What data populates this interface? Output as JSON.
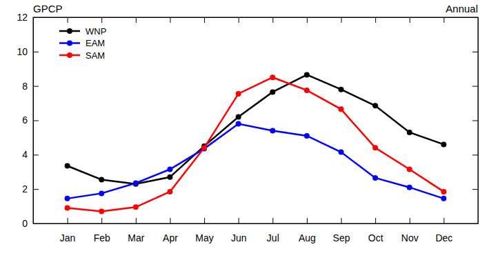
{
  "chart_data": {
    "type": "line",
    "title": "GPCP",
    "subtitle": "Annual",
    "categories": [
      "Jan",
      "Feb",
      "Mar",
      "Apr",
      "May",
      "Jun",
      "Jul",
      "Aug",
      "Sep",
      "Oct",
      "Nov",
      "Dec"
    ],
    "series": [
      {
        "name": "WNP",
        "color": "#000000",
        "marker": "circle",
        "values": [
          3.35,
          2.55,
          2.3,
          2.7,
          4.5,
          6.2,
          7.65,
          8.65,
          7.8,
          6.85,
          5.3,
          4.6
        ]
      },
      {
        "name": "EAM",
        "color": "#0000ff",
        "marker": "circle",
        "values": [
          1.45,
          1.75,
          2.35,
          3.15,
          4.35,
          5.8,
          5.4,
          5.1,
          4.15,
          2.65,
          2.1,
          1.45
        ]
      },
      {
        "name": "SAM",
        "color": "#ff0000",
        "marker": "circle",
        "values": [
          0.9,
          0.7,
          0.95,
          1.85,
          4.4,
          7.55,
          8.5,
          7.75,
          6.65,
          4.4,
          3.15,
          1.85
        ]
      }
    ],
    "ylim": [
      0,
      12
    ],
    "yticks": [
      0,
      2,
      4,
      6,
      8,
      10,
      12
    ],
    "grid": false,
    "legend": "upper left"
  }
}
